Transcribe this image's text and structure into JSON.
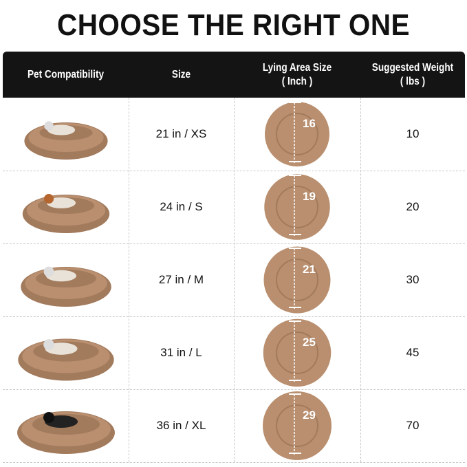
{
  "title": "CHOOSE THE RIGHT ONE",
  "headers": {
    "pet": "Pet Compatibility",
    "size": "Size",
    "lying": "Lying Area Size",
    "lying_unit": "( Inch )",
    "weight": "Suggested Weight",
    "weight_unit": "( lbs )"
  },
  "colors": {
    "header_bg": "#141414",
    "bed": "#b98f6f",
    "bed_dark": "#a27a5c"
  },
  "rows": [
    {
      "pet": "cat",
      "size": "21 in / XS",
      "lying": "16",
      "weight": "10"
    },
    {
      "pet": "poodle",
      "size": "24 in / S",
      "lying": "19",
      "weight": "20"
    },
    {
      "pet": "french-bulldog",
      "size": "27 in / M",
      "lying": "21",
      "weight": "30"
    },
    {
      "pet": "small-dog",
      "size": "31 in / L",
      "lying": "25",
      "weight": "45"
    },
    {
      "pet": "border-collie",
      "size": "36 in / XL",
      "lying": "29",
      "weight": "70"
    }
  ]
}
